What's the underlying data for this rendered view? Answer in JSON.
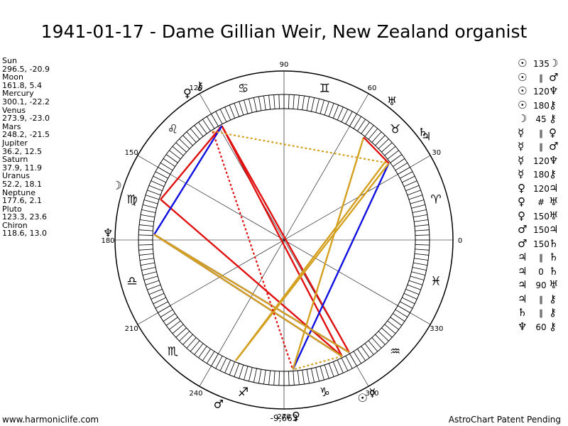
{
  "title": "1941-01-17 - Dame Gillian Weir, New Zealand organist",
  "planets": [
    {
      "name": "Sun",
      "pos": "296.5, -20.9",
      "lon": 296.5,
      "glyph": "☉"
    },
    {
      "name": "Moon",
      "pos": "161.8, 5.4",
      "lon": 161.8,
      "glyph": "☽"
    },
    {
      "name": "Mercury",
      "pos": "300.1, -22.2",
      "lon": 300.1,
      "glyph": "☿"
    },
    {
      "name": "Venus",
      "pos": "273.9, -23.0",
      "lon": 273.9,
      "glyph": "♀"
    },
    {
      "name": "Mars",
      "pos": "248.2, -21.5",
      "lon": 248.2,
      "glyph": "♂"
    },
    {
      "name": "Jupiter",
      "pos": "36.2, 12.5",
      "lon": 36.2,
      "glyph": "♃"
    },
    {
      "name": "Saturn",
      "pos": "37.9, 11.9",
      "lon": 37.9,
      "glyph": "♄"
    },
    {
      "name": "Uranus",
      "pos": "52.2, 18.1",
      "lon": 52.2,
      "glyph": "♅"
    },
    {
      "name": "Neptune",
      "pos": "177.6, 2.1",
      "lon": 177.6,
      "glyph": "♆"
    },
    {
      "name": "Pluto",
      "pos": "123.3, 23.6",
      "lon": 123.3,
      "glyph": "♀"
    },
    {
      "name": "Chiron",
      "pos": "118.6, 13.0",
      "lon": 118.6,
      "glyph": "⚷"
    }
  ],
  "aspects": [
    {
      "p1": "☉",
      "angle": "135",
      "p2": "☽"
    },
    {
      "p1": "☉",
      "angle": "∥",
      "p2": "♂"
    },
    {
      "p1": "☉",
      "angle": "120",
      "p2": "♆"
    },
    {
      "p1": "☉",
      "angle": "180",
      "p2": "⚷"
    },
    {
      "p1": "☽",
      "angle": "45",
      "p2": "⚷"
    },
    {
      "p1": "☿",
      "angle": "∥",
      "p2": "♀"
    },
    {
      "p1": "☿",
      "angle": "∥",
      "p2": "♂"
    },
    {
      "p1": "☿",
      "angle": "120",
      "p2": "♆"
    },
    {
      "p1": "☿",
      "angle": "180",
      "p2": "⚷"
    },
    {
      "p1": "♀",
      "angle": "120",
      "p2": "♃"
    },
    {
      "p1": "♀",
      "angle": "#",
      "p2": "♅"
    },
    {
      "p1": "♀",
      "angle": "150",
      "p2": "♅"
    },
    {
      "p1": "♂",
      "angle": "150",
      "p2": "♃"
    },
    {
      "p1": "♂",
      "angle": "150",
      "p2": "♄"
    },
    {
      "p1": "♃",
      "angle": "∥",
      "p2": "♄"
    },
    {
      "p1": "♃",
      "angle": "0",
      "p2": "♄"
    },
    {
      "p1": "♃",
      "angle": "90",
      "p2": "♅"
    },
    {
      "p1": "♃",
      "angle": "∥",
      "p2": "⚷"
    },
    {
      "p1": "♄",
      "angle": "∥",
      "p2": "⚷"
    },
    {
      "p1": "♆",
      "angle": "60",
      "p2": "⚷"
    }
  ],
  "wheel": {
    "degree_labels": [
      "0",
      "30",
      "60",
      "90",
      "120",
      "150",
      "180",
      "210",
      "240",
      "270",
      "300",
      "330"
    ],
    "signs": [
      "♈",
      "♉",
      "♊",
      "♋",
      "♌",
      "♍",
      "♎",
      "♏",
      "♐",
      "♑",
      "♒",
      "♓"
    ],
    "bottom_value": "-9,663"
  },
  "chart_lines": [
    {
      "a": "Sun",
      "b": "Moon",
      "kind": "135",
      "color": "#e01010"
    },
    {
      "a": "Sun",
      "b": "Neptune",
      "kind": "120",
      "color": "#1010e0"
    },
    {
      "a": "Sun",
      "b": "Chiron",
      "kind": "180",
      "color": "#e01010"
    },
    {
      "a": "Moon",
      "b": "Chiron",
      "kind": "45",
      "color": "#e01010"
    },
    {
      "a": "Mercury",
      "b": "Neptune",
      "kind": "120",
      "color": "#1010e0"
    },
    {
      "a": "Mercury",
      "b": "Chiron",
      "kind": "180",
      "color": "#e01010"
    },
    {
      "a": "Venus",
      "b": "Jupiter",
      "kind": "120",
      "color": "#1010e0"
    },
    {
      "a": "Venus",
      "b": "Uranus",
      "kind": "150",
      "color": "#d4a020"
    },
    {
      "a": "Mars",
      "b": "Jupiter",
      "kind": "150",
      "color": "#d4a020"
    },
    {
      "a": "Mars",
      "b": "Saturn",
      "kind": "150",
      "color": "#d4a020"
    },
    {
      "a": "Jupiter",
      "b": "Uranus",
      "kind": "90",
      "color": "#e01010"
    },
    {
      "a": "Neptune",
      "b": "Chiron",
      "kind": "60",
      "color": "#1010e0"
    },
    {
      "a": "Neptune",
      "b": "Sun",
      "kind": "150",
      "color": "#d4a020"
    },
    {
      "a": "Neptune",
      "b": "Mercury",
      "kind": "150",
      "color": "#d4a020"
    },
    {
      "a": "Pluto",
      "b": "Venus",
      "kind": "dotted",
      "color": "#e01010"
    },
    {
      "a": "Pluto",
      "b": "Jupiter",
      "kind": "dotted",
      "color": "#d4a020"
    },
    {
      "a": "Sun",
      "b": "Venus",
      "kind": "dotted",
      "color": "#d4a020"
    }
  ],
  "colors": {
    "red": "#e01010",
    "blue": "#1010e0",
    "gold": "#d4a020"
  },
  "footer": {
    "left": "www.harmoniclife.com",
    "right": "AstroChart Patent Pending"
  }
}
